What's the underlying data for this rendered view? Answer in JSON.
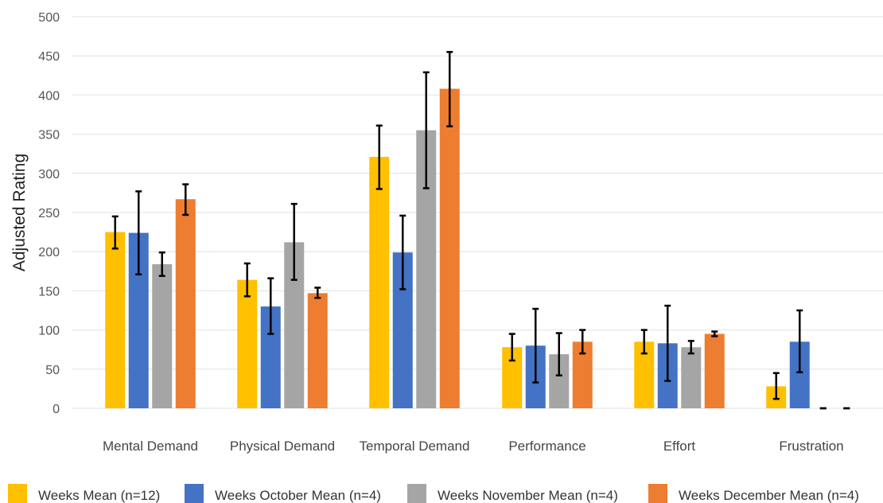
{
  "chart_data": {
    "type": "bar",
    "title": "",
    "xlabel": "",
    "ylabel": "Adjusted Rating",
    "ylim": [
      0,
      500
    ],
    "yticks": [
      0,
      50,
      100,
      150,
      200,
      250,
      300,
      350,
      400,
      450,
      500
    ],
    "grid": true,
    "legend_position": "bottom",
    "categories": [
      "Mental Demand",
      "Physical Demand",
      "Temporal Demand",
      "Performance",
      "Effort",
      "Frustration"
    ],
    "series": [
      {
        "name": "Weeks Mean (n=12)",
        "color": "#FFC000",
        "values": [
          225,
          164,
          321,
          78,
          85,
          28
        ],
        "error_low": [
          204,
          143,
          280,
          61,
          70,
          12
        ],
        "error_high": [
          245,
          185,
          361,
          95,
          100,
          45
        ]
      },
      {
        "name": "Weeks October Mean (n=4)",
        "color": "#4472C4",
        "values": [
          224,
          130,
          199,
          80,
          83,
          85
        ],
        "error_low": [
          171,
          95,
          152,
          33,
          35,
          46
        ],
        "error_high": [
          277,
          166,
          246,
          127,
          131,
          125
        ]
      },
      {
        "name": "Weeks November Mean (n=4)",
        "color": "#A5A5A5",
        "values": [
          184,
          212,
          355,
          69,
          78,
          0
        ],
        "error_low": [
          169,
          164,
          281,
          42,
          70,
          0
        ],
        "error_high": [
          199,
          261,
          429,
          96,
          86,
          0
        ]
      },
      {
        "name": "Weeks December Mean (n=4)",
        "color": "#ED7D31",
        "values": [
          267,
          147,
          408,
          85,
          95,
          0
        ],
        "error_low": [
          247,
          141,
          360,
          70,
          92,
          0
        ],
        "error_high": [
          286,
          154,
          455,
          100,
          98,
          0
        ]
      }
    ]
  }
}
